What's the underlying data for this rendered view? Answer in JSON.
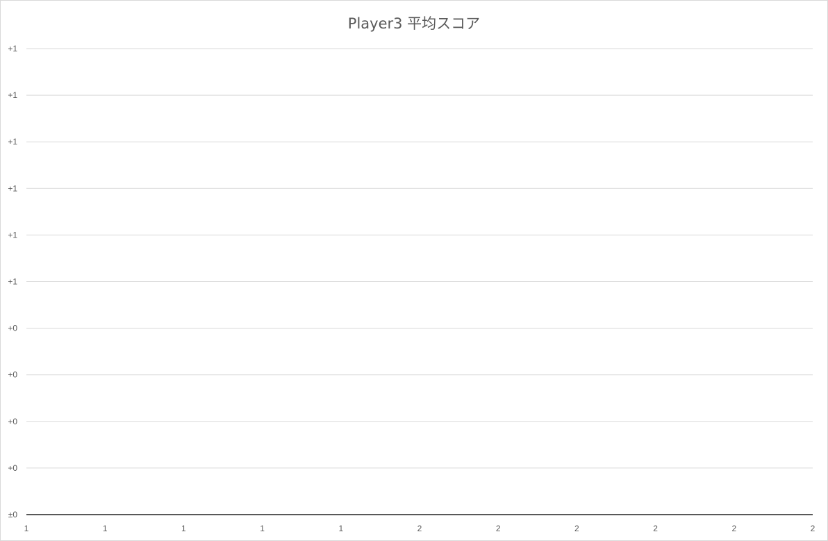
{
  "chart_data": {
    "type": "line",
    "title": "Player3 平均スコア",
    "xlabel": "",
    "ylabel": "",
    "x_tick_labels": [
      "1",
      "1",
      "1",
      "1",
      "1",
      "2",
      "2",
      "2",
      "2",
      "2",
      "2"
    ],
    "y_tick_labels": [
      "±0",
      "+0",
      "+0",
      "+0",
      "+0",
      "+1",
      "+1",
      "+1",
      "+1",
      "+1",
      "+1"
    ],
    "series": [],
    "grid": true,
    "legend": "none",
    "colors": {
      "gridline": "#d9d9d9",
      "axis": "#595959",
      "text": "#595959",
      "border": "#d9d9d9"
    }
  }
}
